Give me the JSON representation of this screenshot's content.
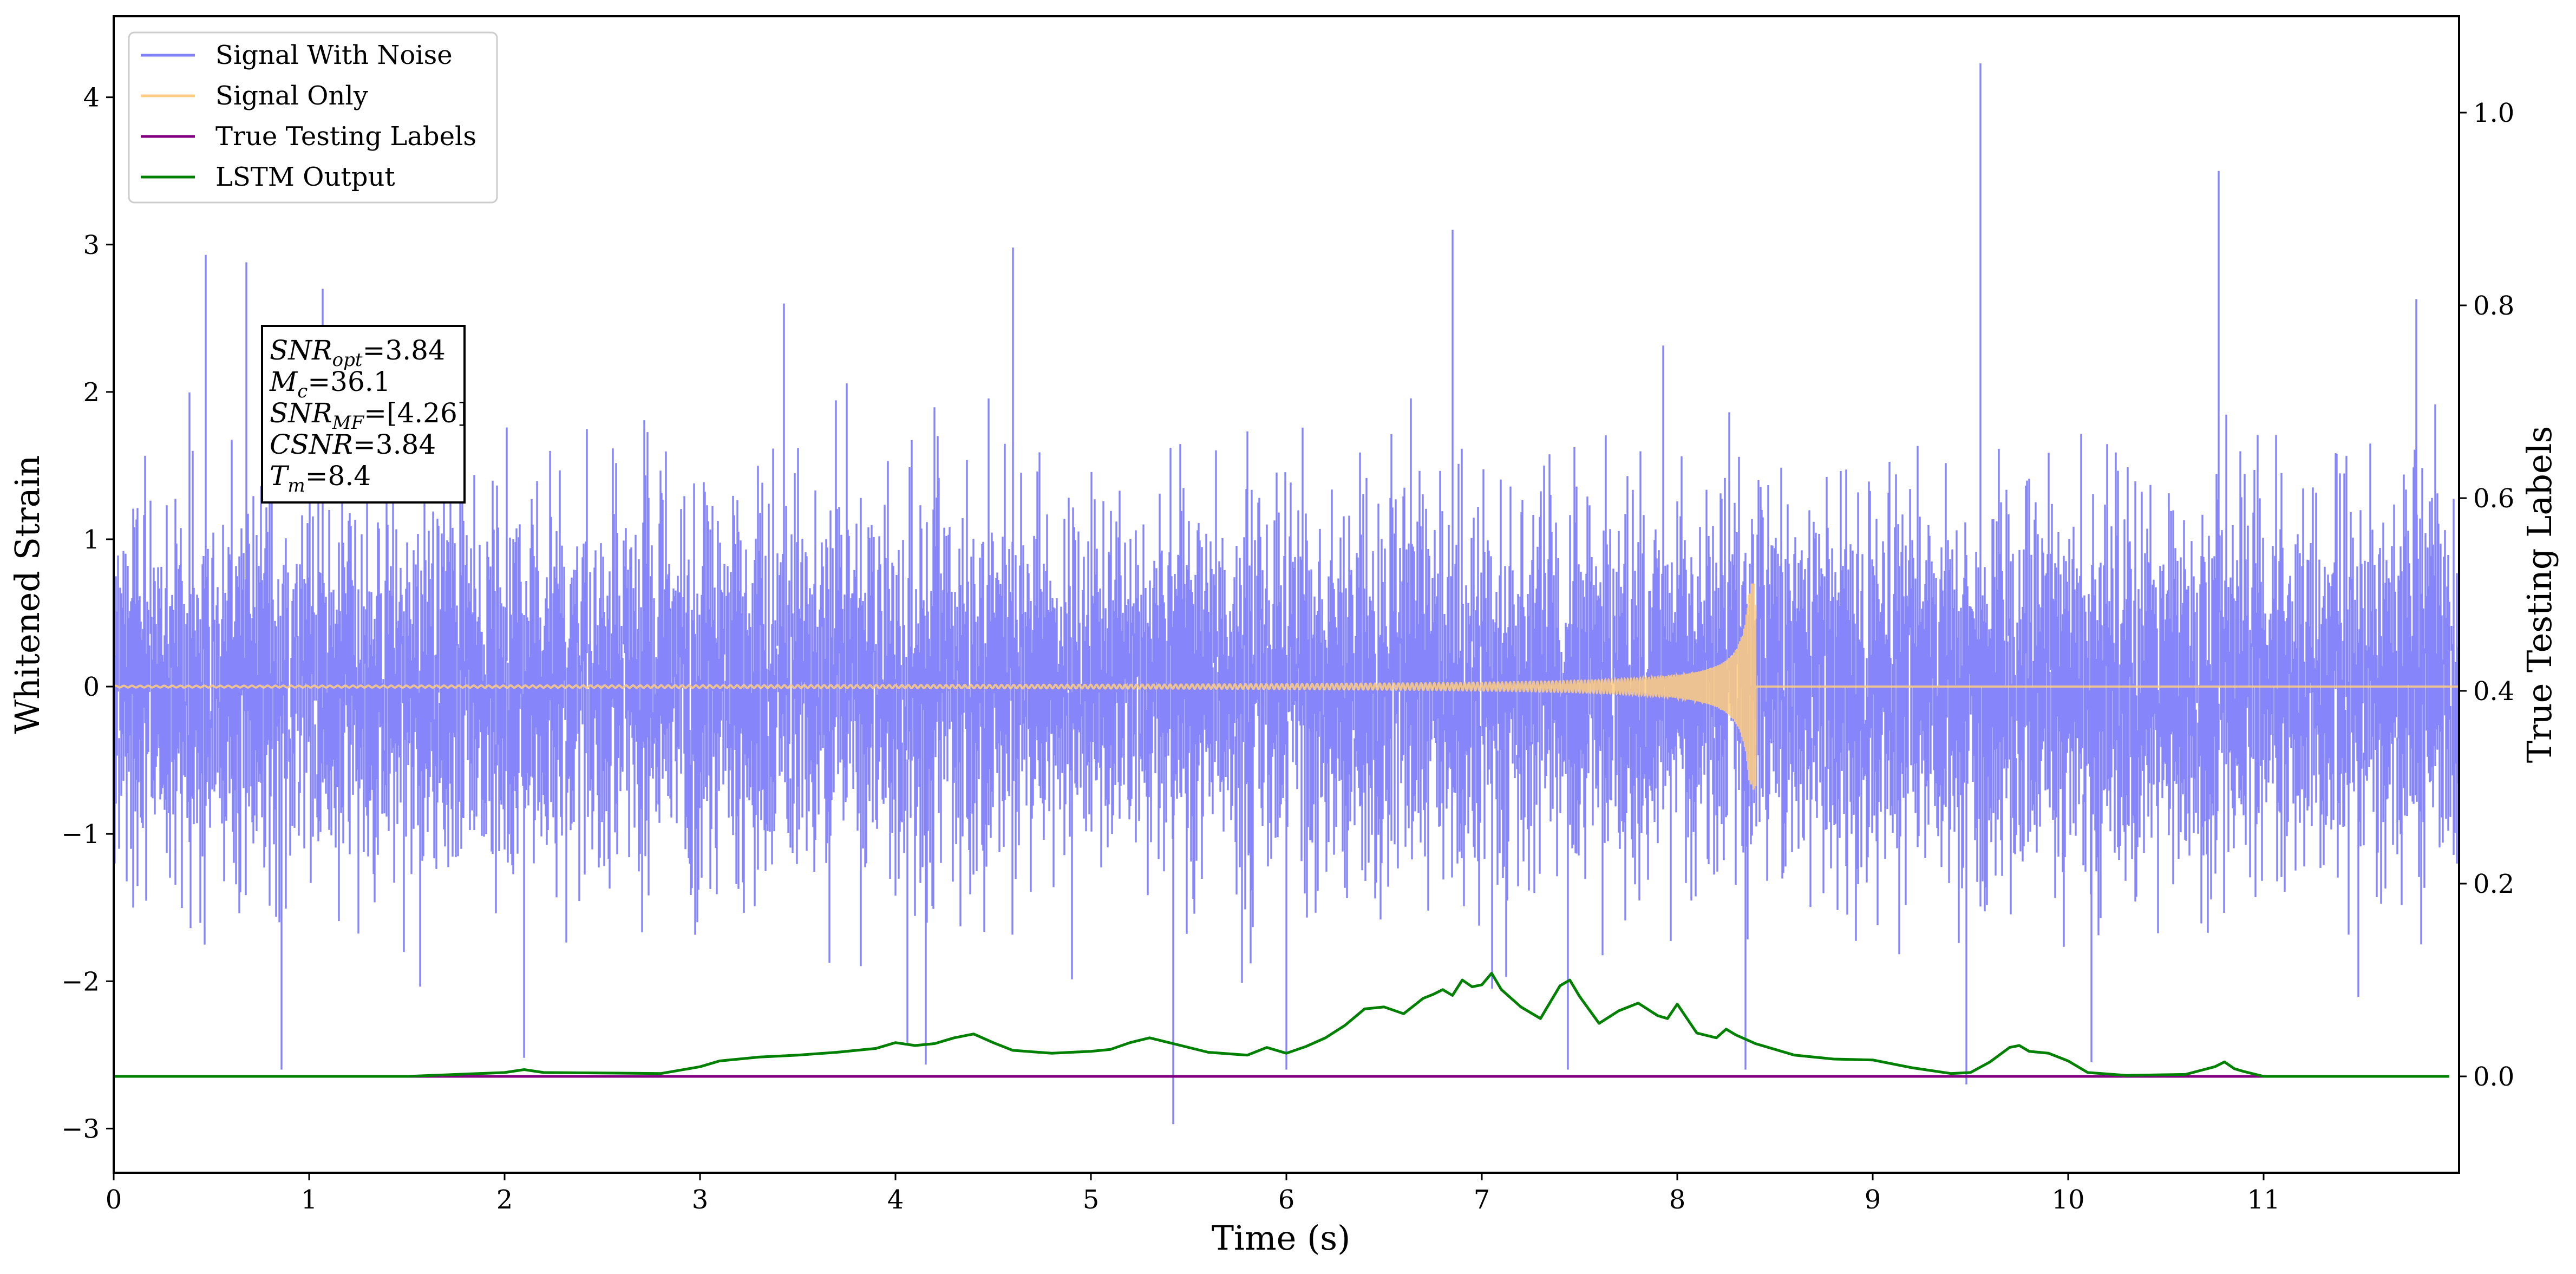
{
  "chart_data": {
    "type": "line",
    "xlabel": "Time (s)",
    "ylabel": "Whitened Strain",
    "y2label": "True Testing Labels",
    "xlim": [
      0,
      12
    ],
    "ylim": [
      -3.3,
      4.55
    ],
    "y2lim": [
      -0.1,
      1.1
    ],
    "x_ticks": [
      0,
      1,
      2,
      3,
      4,
      5,
      6,
      7,
      8,
      9,
      10,
      11
    ],
    "x_tick_labels": [
      "0",
      "1",
      "2",
      "3",
      "4",
      "5",
      "6",
      "7",
      "8",
      "9",
      "10",
      "11"
    ],
    "y_ticks": [
      -3,
      -2,
      -1,
      0,
      1,
      2,
      3,
      4
    ],
    "y_tick_labels": [
      "−3",
      "−2",
      "−1",
      "0",
      "1",
      "2",
      "3",
      "4"
    ],
    "y2_ticks": [
      0.0,
      0.2,
      0.4,
      0.6,
      0.8,
      1.0
    ],
    "y2_tick_labels": [
      "0.0",
      "0.2",
      "0.4",
      "0.6",
      "0.8",
      "1.0"
    ],
    "legend_position": "top-left",
    "grid": false,
    "series": [
      {
        "name": "Signal With Noise",
        "color": "#7f7ffa",
        "axis": "left",
        "description_only": false,
        "noise_std": 0.62,
        "duration_s": 12,
        "spikes": [
          {
            "x": 0.47,
            "y": 2.93
          },
          {
            "x": 0.68,
            "y": 2.88
          },
          {
            "x": 1.07,
            "y": 2.7
          },
          {
            "x": 0.86,
            "y": -2.6
          },
          {
            "x": 2.1,
            "y": -2.52
          },
          {
            "x": 3.43,
            "y": 2.6
          },
          {
            "x": 4.6,
            "y": 2.98
          },
          {
            "x": 5.42,
            "y": -2.97
          },
          {
            "x": 6.0,
            "y": -2.6
          },
          {
            "x": 6.85,
            "y": 3.1
          },
          {
            "x": 7.44,
            "y": -2.6
          },
          {
            "x": 8.35,
            "y": -2.6
          },
          {
            "x": 9.48,
            "y": -2.7
          },
          {
            "x": 9.55,
            "y": 4.23
          },
          {
            "x": 10.12,
            "y": -2.55
          },
          {
            "x": 10.77,
            "y": 3.5
          },
          {
            "x": 11.78,
            "y": 2.63
          }
        ]
      },
      {
        "name": "Signal Only",
        "color": "#ffcc80",
        "axis": "left",
        "chirp_end_s": 8.4,
        "peak_amplitude": 0.7
      },
      {
        "name": "True Testing Labels",
        "color": "#800080",
        "axis": "right",
        "x": [
          0,
          11.95
        ],
        "values": [
          0.0,
          0.0
        ]
      },
      {
        "name": "LSTM Output",
        "color": "#008000",
        "axis": "right",
        "x": [
          0,
          1.5,
          2.0,
          2.1,
          2.2,
          2.8,
          3.0,
          3.1,
          3.3,
          3.5,
          3.7,
          3.9,
          4.0,
          4.1,
          4.2,
          4.3,
          4.4,
          4.5,
          4.6,
          4.8,
          5.0,
          5.1,
          5.2,
          5.3,
          5.4,
          5.6,
          5.8,
          5.9,
          6.0,
          6.1,
          6.2,
          6.3,
          6.4,
          6.5,
          6.6,
          6.7,
          6.75,
          6.8,
          6.85,
          6.9,
          6.95,
          7.0,
          7.05,
          7.1,
          7.2,
          7.3,
          7.4,
          7.45,
          7.5,
          7.6,
          7.7,
          7.8,
          7.9,
          7.95,
          8.0,
          8.1,
          8.2,
          8.25,
          8.3,
          8.4,
          8.6,
          8.8,
          9.0,
          9.2,
          9.4,
          9.5,
          9.6,
          9.7,
          9.75,
          9.8,
          9.9,
          10.0,
          10.1,
          10.3,
          10.6,
          10.75,
          10.8,
          10.85,
          10.9,
          11.0,
          11.95
        ],
        "values": [
          0.0,
          0.0,
          0.004,
          0.007,
          0.004,
          0.003,
          0.01,
          0.016,
          0.02,
          0.022,
          0.025,
          0.029,
          0.035,
          0.032,
          0.034,
          0.04,
          0.044,
          0.035,
          0.027,
          0.024,
          0.026,
          0.028,
          0.035,
          0.04,
          0.035,
          0.025,
          0.022,
          0.03,
          0.024,
          0.031,
          0.04,
          0.053,
          0.07,
          0.072,
          0.065,
          0.081,
          0.085,
          0.09,
          0.084,
          0.1,
          0.093,
          0.095,
          0.107,
          0.09,
          0.072,
          0.06,
          0.094,
          0.1,
          0.083,
          0.055,
          0.068,
          0.076,
          0.063,
          0.06,
          0.075,
          0.045,
          0.04,
          0.049,
          0.043,
          0.034,
          0.022,
          0.018,
          0.017,
          0.009,
          0.003,
          0.004,
          0.015,
          0.03,
          0.032,
          0.026,
          0.024,
          0.016,
          0.004,
          0.001,
          0.002,
          0.01,
          0.015,
          0.008,
          0.005,
          0.0,
          0.0
        ]
      }
    ]
  },
  "legend": {
    "items": [
      {
        "label": "Signal With Noise",
        "color": "#7f7ffa"
      },
      {
        "label": "Signal Only",
        "color": "#ffcc80"
      },
      {
        "label": "True Testing Labels",
        "color": "#800080"
      },
      {
        "label": "LSTM Output",
        "color": "#008000"
      }
    ]
  },
  "info_box": {
    "lines": [
      {
        "sym": "SNR",
        "sub": "opt",
        "rest": "=3.84"
      },
      {
        "sym": "M",
        "sub": "c",
        "rest": "=36.1"
      },
      {
        "sym": "SNR",
        "sub": "MF",
        "rest": "=[4.26]"
      },
      {
        "sym": "CSNR",
        "sub": "",
        "rest": "=3.84"
      },
      {
        "sym": "T",
        "sub": "m",
        "rest": "=8.4"
      }
    ]
  }
}
